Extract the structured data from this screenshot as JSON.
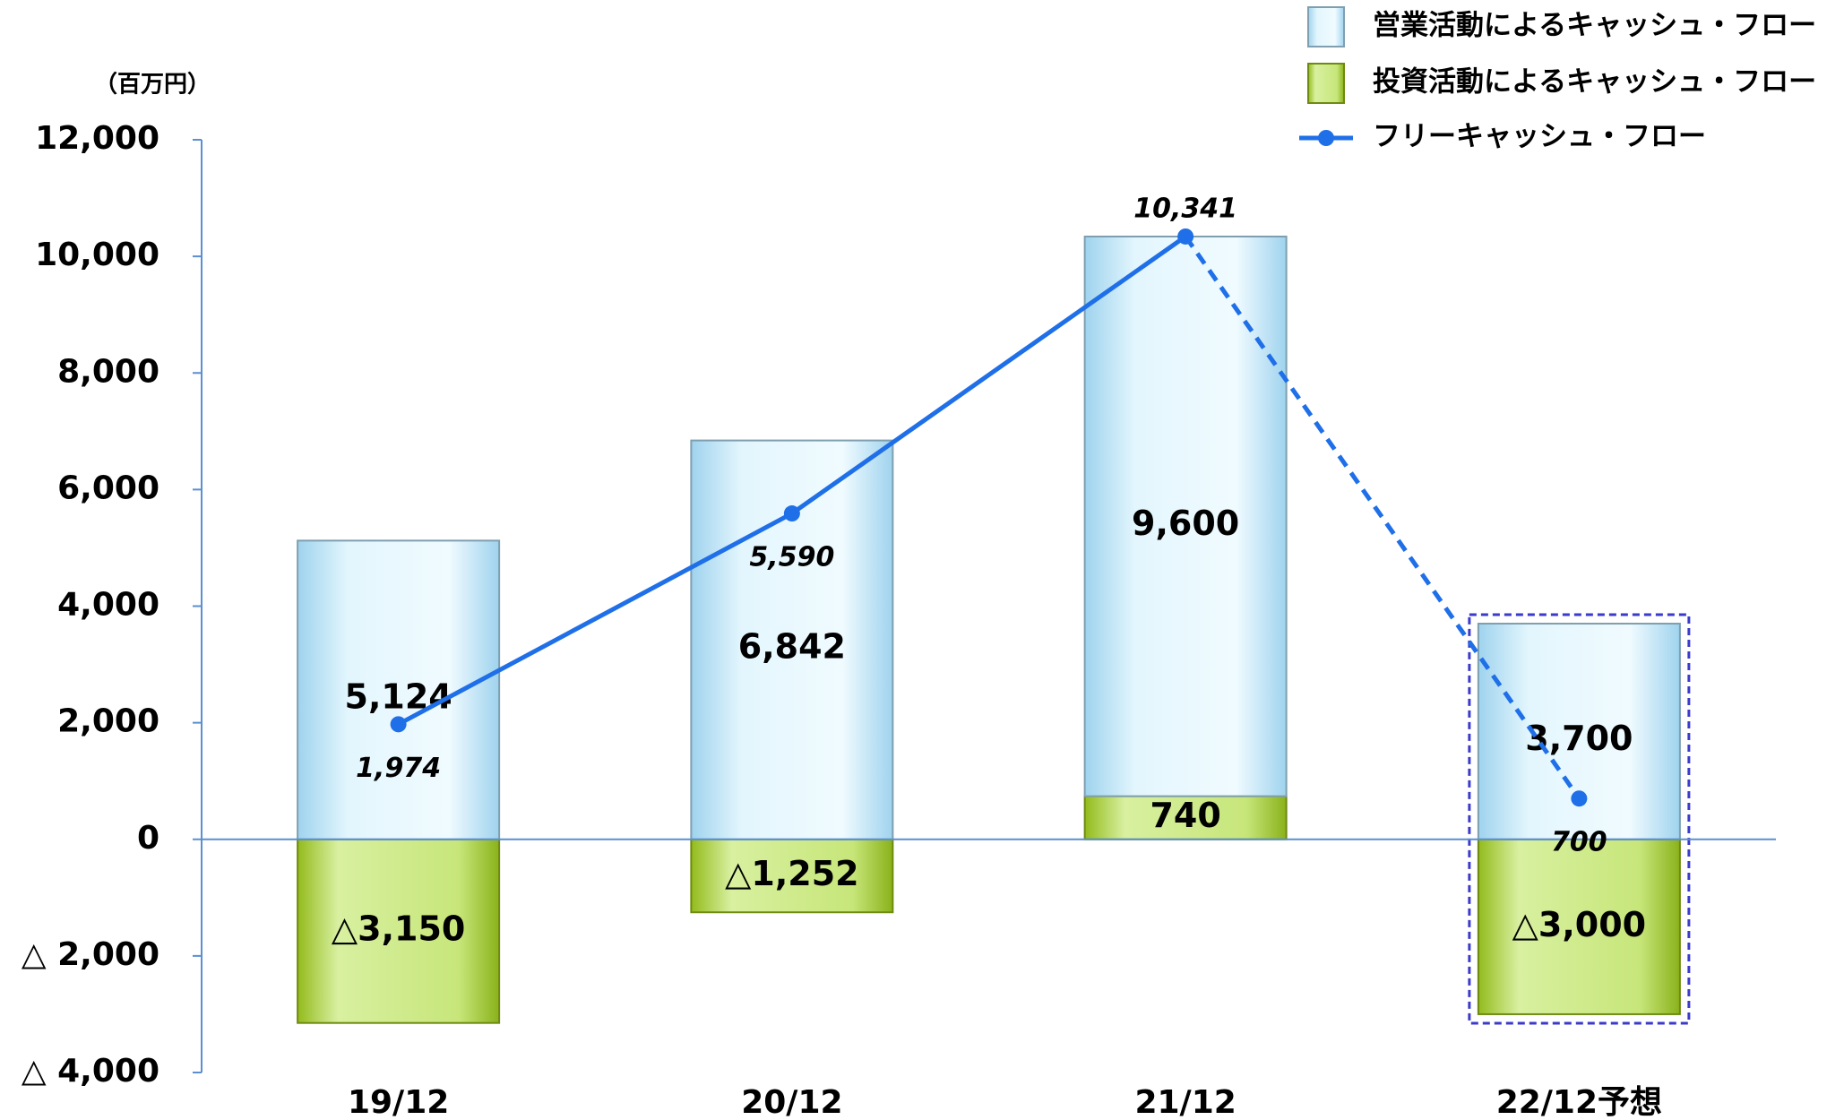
{
  "chart_data": {
    "type": "bar_line",
    "y_label": "（百万円）",
    "categories": [
      "19/12",
      "20/12",
      "21/12",
      "22/12予想"
    ],
    "forecast_categories": [
      false,
      false,
      false,
      true
    ],
    "forecast_color": "#3a3acc",
    "series": [
      {
        "name": "営業活動によるキャッシュ・フロー",
        "type": "bar",
        "color": "#bfe6f7",
        "values": [
          5124,
          6842,
          9600,
          3700
        ],
        "value_labels": [
          "5,124",
          "6,842",
          "9,600",
          "3,700"
        ]
      },
      {
        "name": "投資活動によるキャッシュ・フロー",
        "type": "bar",
        "color": "#aed13a",
        "values": [
          -3150,
          -1252,
          740,
          -3000
        ],
        "value_labels": [
          "△3,150",
          "△1,252",
          "740",
          "△3,000"
        ]
      },
      {
        "name": "フリーキャッシュ・フロー",
        "type": "line",
        "color": "#1f6fe8",
        "values": [
          1974,
          5590,
          10341,
          700
        ],
        "value_labels": [
          "1,974",
          "5,590",
          "10,341",
          "700"
        ],
        "label_position": [
          "below",
          "below",
          "above",
          "below"
        ]
      }
    ],
    "ylim": [
      -4000,
      12000
    ],
    "yticks": [
      {
        "value": -4000,
        "label": "△ 4,000"
      },
      {
        "value": -2000,
        "label": "△ 2,000"
      },
      0,
      {
        "value": 2000,
        "label": "2,000"
      },
      {
        "value": 4000,
        "label": "4,000"
      },
      {
        "value": 6000,
        "label": "6,000"
      },
      {
        "value": 8000,
        "label": "8,000"
      },
      {
        "value": 10000,
        "label": "10,000"
      },
      {
        "value": 12000,
        "label": "12,000"
      }
    ],
    "legend": "top-right"
  }
}
